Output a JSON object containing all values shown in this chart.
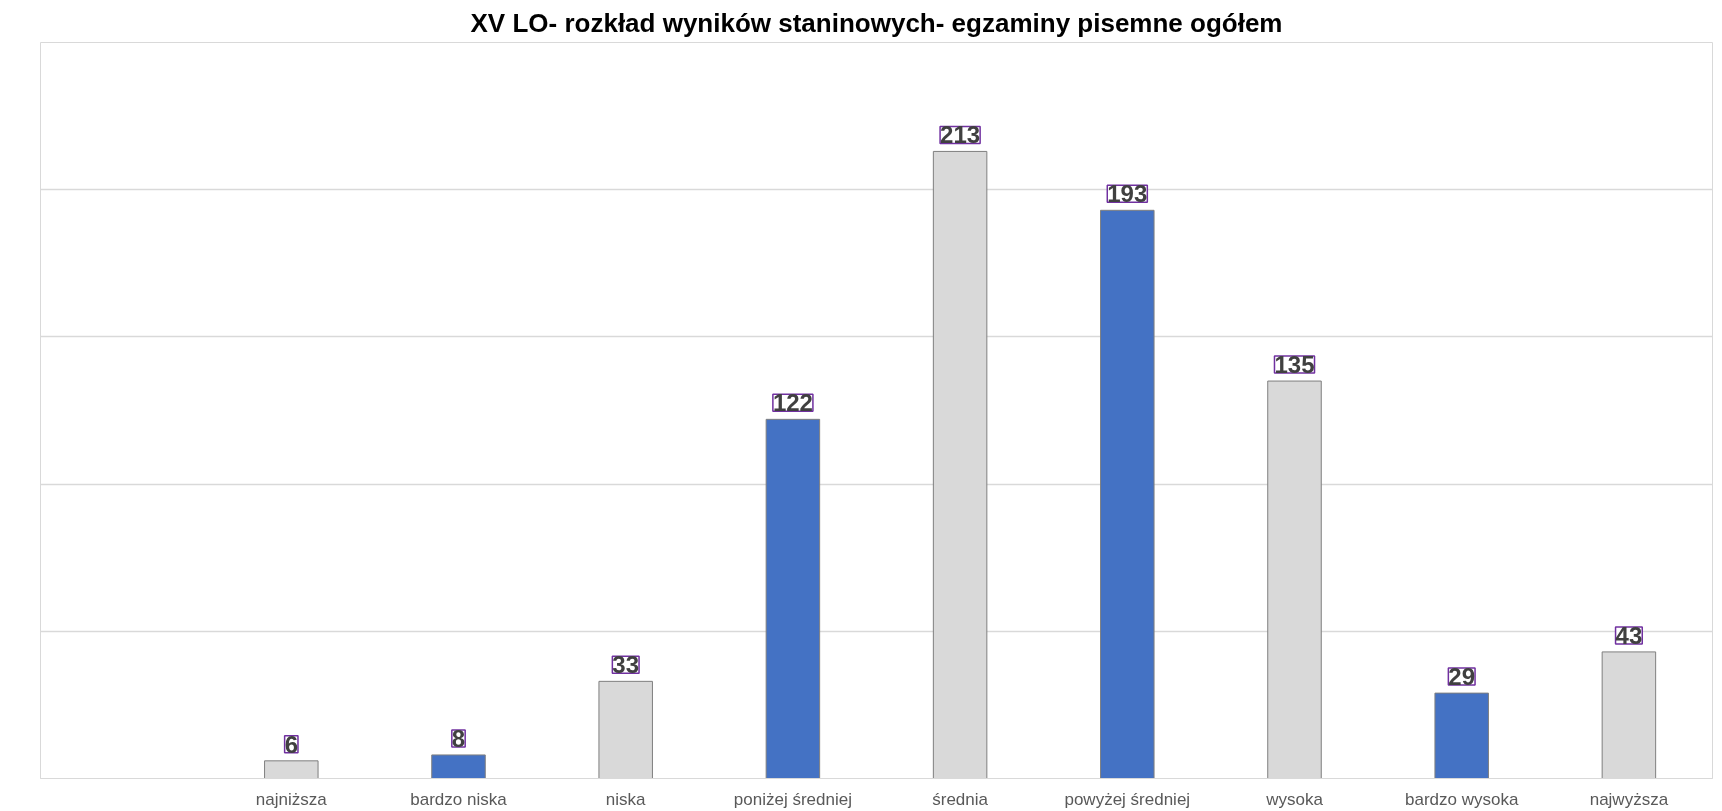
{
  "chart_data": {
    "type": "bar",
    "title": "XV LO- rozkład wyników staninowych- egzaminy pisemne ogółem",
    "categories": [
      null,
      "najniższa",
      "bardzo niska",
      "niska",
      "poniżej średniej",
      "średnia",
      "powyżej średniej",
      "wysoka",
      "bardzo wysoka",
      "najwyższa"
    ],
    "values": [
      null,
      6,
      8,
      33,
      122,
      213,
      193,
      135,
      29,
      43
    ],
    "colors": [
      "#d9d9d9",
      "#d9d9d9",
      "#4472c4",
      "#d9d9d9",
      "#4472c4",
      "#d9d9d9",
      "#4472c4",
      "#d9d9d9",
      "#4472c4",
      "#d9d9d9"
    ],
    "ylim": [
      0,
      250
    ],
    "yticks": [
      {
        "value": 0,
        "label": null
      },
      {
        "value": 50,
        "label": null
      },
      {
        "value": 100,
        "label": null
      },
      {
        "value": 150,
        "label": null
      },
      {
        "value": 200,
        "label": null
      },
      {
        "value": 250,
        "label": null
      }
    ],
    "tick_labels": "x",
    "grid": "y",
    "data_labels": true
  }
}
